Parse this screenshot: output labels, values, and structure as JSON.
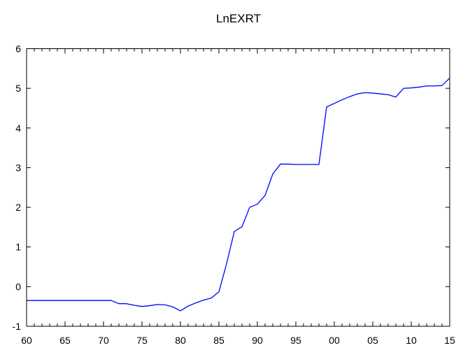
{
  "chart_data": {
    "type": "line",
    "title": "LnEXRT",
    "xlabel": "",
    "ylabel": "",
    "xlim": [
      1960,
      2015
    ],
    "ylim": [
      -1,
      6
    ],
    "grid": false,
    "legend": "none",
    "line_color": "#0000ff",
    "x_tick_labels": [
      "60",
      "65",
      "70",
      "75",
      "80",
      "85",
      "90",
      "95",
      "00",
      "05",
      "10",
      "15"
    ],
    "y_tick_labels": [
      "-1",
      "0",
      "1",
      "2",
      "3",
      "4",
      "5",
      "6"
    ],
    "series": [
      {
        "x": [
          1960,
          1961,
          1962,
          1963,
          1964,
          1965,
          1966,
          1967,
          1968,
          1969,
          1970,
          1971,
          1972,
          1973,
          1974,
          1975,
          1976,
          1977,
          1978,
          1979,
          1980,
          1981,
          1982,
          1983,
          1984,
          1985,
          1986,
          1987,
          1988,
          1989,
          1990,
          1991,
          1992,
          1993,
          1994,
          1995,
          1996,
          1997,
          1998,
          1999,
          2000,
          2001,
          2002,
          2003,
          2004,
          2005,
          2006,
          2007,
          2008,
          2009,
          2010,
          2011,
          2012,
          2013,
          2014,
          2015
        ],
        "values": [
          -0.35,
          -0.35,
          -0.35,
          -0.35,
          -0.35,
          -0.35,
          -0.35,
          -0.35,
          -0.35,
          -0.35,
          -0.35,
          -0.35,
          -0.43,
          -0.43,
          -0.47,
          -0.5,
          -0.48,
          -0.45,
          -0.46,
          -0.51,
          -0.61,
          -0.49,
          -0.41,
          -0.34,
          -0.29,
          -0.13,
          0.58,
          1.39,
          1.51,
          2.0,
          2.08,
          2.3,
          2.84,
          3.09,
          3.09,
          3.08,
          3.08,
          3.08,
          3.08,
          4.53,
          4.62,
          4.71,
          4.79,
          4.86,
          4.89,
          4.88,
          4.86,
          4.84,
          4.78,
          5.0,
          5.01,
          5.03,
          5.06,
          5.06,
          5.07,
          5.26
        ]
      }
    ]
  }
}
